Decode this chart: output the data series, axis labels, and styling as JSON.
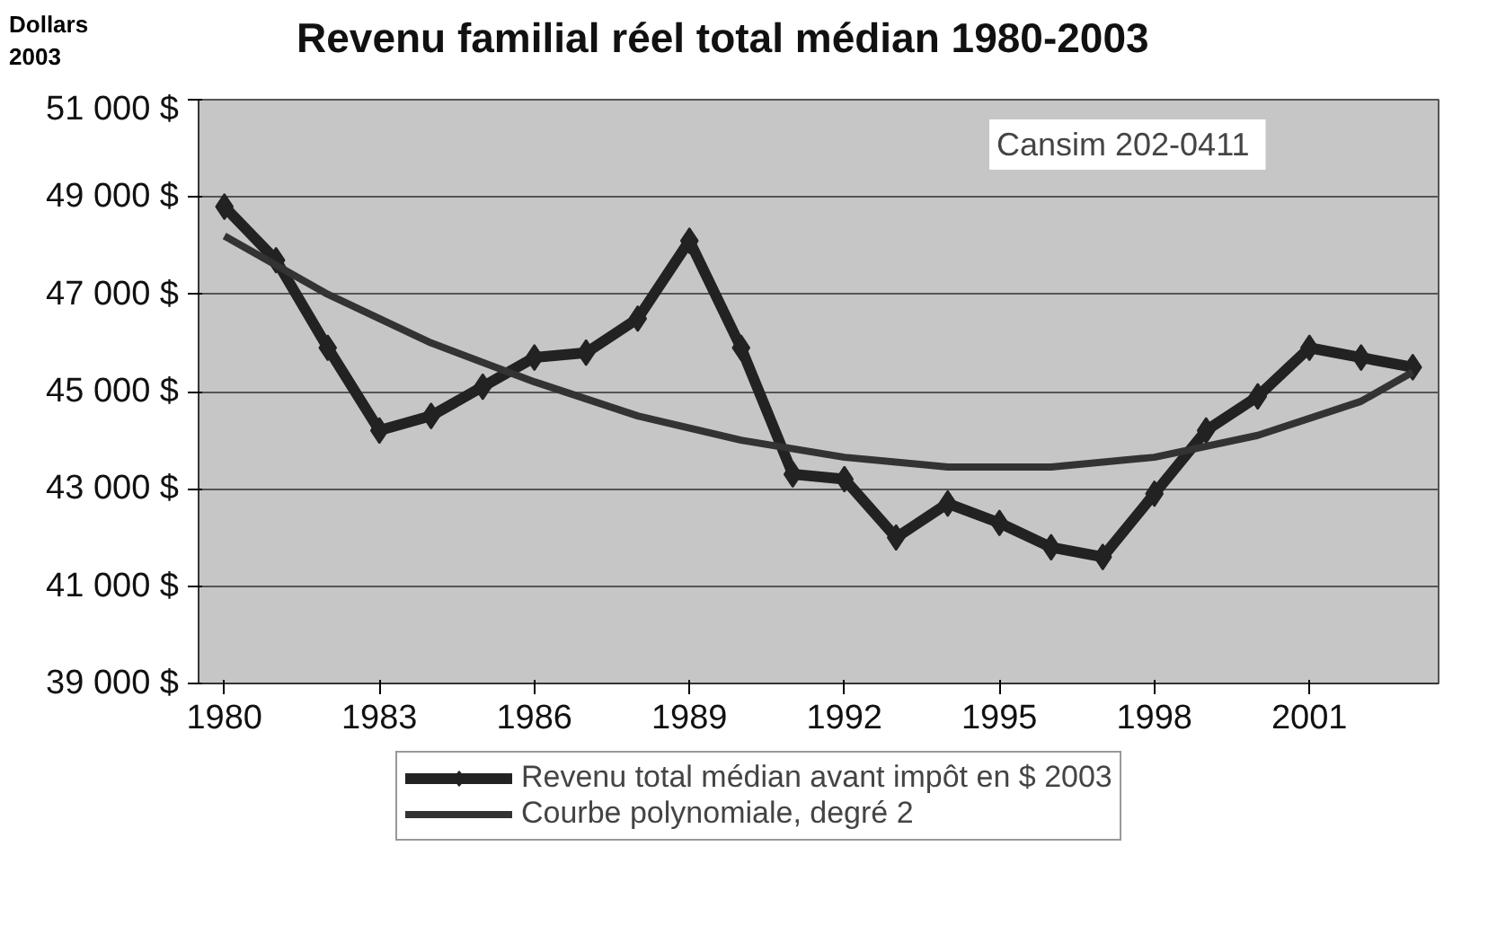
{
  "chart_data": {
    "type": "line",
    "title": "Revenu familial réel total médian 1980-2003",
    "ylabel": "Dollars\n2003",
    "x": [
      1980,
      1981,
      1982,
      1983,
      1984,
      1985,
      1986,
      1987,
      1988,
      1989,
      1990,
      1991,
      1992,
      1993,
      1994,
      1995,
      1996,
      1997,
      1998,
      1999,
      2000,
      2001,
      2002,
      2003
    ],
    "series": [
      {
        "name": "Revenu total médian avant impôt en $ 2003",
        "color": "#222222",
        "marker": "diamond",
        "values": [
          48800,
          47700,
          45900,
          44200,
          44500,
          45100,
          45700,
          45800,
          46500,
          48100,
          45900,
          43300,
          43200,
          42000,
          42700,
          42300,
          41800,
          41600,
          42900,
          44200,
          44900,
          45900,
          45700,
          45500
        ]
      },
      {
        "name": "Courbe polynomiale, degré 2",
        "color": "#333333",
        "marker": "none",
        "x": [
          1980,
          1982,
          1984,
          1986,
          1988,
          1990,
          1992,
          1994,
          1996,
          1998,
          2000,
          2002,
          2003
        ],
        "values": [
          48200,
          47000,
          46000,
          45200,
          44500,
          44000,
          43650,
          43450,
          43450,
          43650,
          44100,
          44800,
          45400
        ]
      }
    ],
    "xlim": [
      1979.5,
      2003.5
    ],
    "xticks": [
      1980,
      1983,
      1986,
      1989,
      1992,
      1995,
      1998,
      2001
    ],
    "ylim": [
      39000,
      51000
    ],
    "yticks": [
      {
        "value": 39000,
        "label": "39 000 $"
      },
      {
        "value": 41000,
        "label": "41 000 $"
      },
      {
        "value": 43000,
        "label": "43 000 $"
      },
      {
        "value": 45000,
        "label": "45 000 $"
      },
      {
        "value": 47000,
        "label": "47 000 $"
      },
      {
        "value": 49000,
        "label": "49 000 $"
      },
      {
        "value": 51000,
        "label": "51 000 $"
      }
    ],
    "grid": "y",
    "legend": "bottom",
    "line_style": "solid",
    "annotations": [
      "Cansim  202-0411"
    ]
  }
}
